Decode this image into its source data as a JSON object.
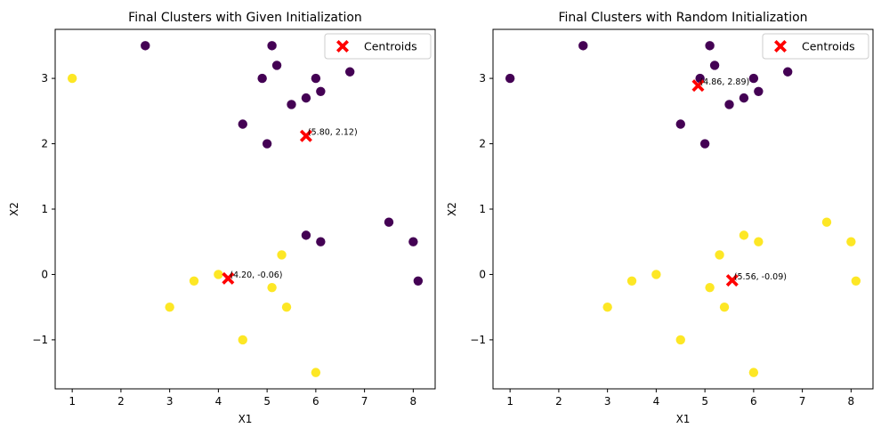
{
  "chart_data": [
    {
      "type": "scatter",
      "title": "Final Clusters with Given Initialization",
      "xlabel": "X1",
      "ylabel": "X2",
      "xlim": [
        0.65,
        8.45
      ],
      "ylim": [
        -1.75,
        3.75
      ],
      "xticks": [
        1,
        2,
        3,
        4,
        5,
        6,
        7,
        8
      ],
      "yticks": [
        -1,
        0,
        1,
        2,
        3
      ],
      "grid": false,
      "legend_position": "top-right",
      "legend": [
        {
          "label": "Centroids",
          "marker": "X",
          "color": "#ff0000"
        }
      ],
      "colors": {
        "cluster_0": "#440154",
        "cluster_1": "#fde725",
        "centroid": "#ff0000"
      },
      "series": [
        {
          "color": "#440154",
          "points": [
            [
              2.5,
              3.5
            ],
            [
              5.1,
              3.5
            ],
            [
              5.2,
              3.2
            ],
            [
              4.9,
              3.0
            ],
            [
              6.0,
              3.0
            ],
            [
              6.7,
              3.1
            ],
            [
              5.8,
              2.7
            ],
            [
              6.1,
              2.8
            ],
            [
              5.5,
              2.6
            ],
            [
              4.5,
              2.3
            ],
            [
              5.0,
              2.0
            ],
            [
              7.5,
              0.8
            ],
            [
              5.8,
              0.6
            ],
            [
              6.1,
              0.5
            ],
            [
              8.0,
              0.5
            ],
            [
              8.1,
              -0.1
            ]
          ]
        },
        {
          "color": "#fde725",
          "points": [
            [
              1.0,
              3.0
            ],
            [
              5.3,
              0.3
            ],
            [
              4.0,
              0.0
            ],
            [
              3.5,
              -0.1
            ],
            [
              5.1,
              -0.2
            ],
            [
              3.0,
              -0.5
            ],
            [
              5.4,
              -0.5
            ],
            [
              4.5,
              -1.0
            ],
            [
              6.0,
              -1.5
            ]
          ]
        }
      ],
      "centroids": [
        {
          "x": 5.8,
          "y": 2.12,
          "label": "(5.80, 2.12)"
        },
        {
          "x": 4.2,
          "y": -0.06,
          "label": "(4.20, -0.06)"
        }
      ]
    },
    {
      "type": "scatter",
      "title": "Final Clusters with Random Initialization",
      "xlabel": "X1",
      "ylabel": "X2",
      "xlim": [
        0.65,
        8.45
      ],
      "ylim": [
        -1.75,
        3.75
      ],
      "xticks": [
        1,
        2,
        3,
        4,
        5,
        6,
        7,
        8
      ],
      "yticks": [
        -1,
        0,
        1,
        2,
        3
      ],
      "grid": false,
      "legend_position": "top-right",
      "legend": [
        {
          "label": "Centroids",
          "marker": "X",
          "color": "#ff0000"
        }
      ],
      "colors": {
        "cluster_0": "#440154",
        "cluster_1": "#fde725",
        "centroid": "#ff0000"
      },
      "series": [
        {
          "color": "#440154",
          "points": [
            [
              1.0,
              3.0
            ],
            [
              2.5,
              3.5
            ],
            [
              5.1,
              3.5
            ],
            [
              5.2,
              3.2
            ],
            [
              4.9,
              3.0
            ],
            [
              6.0,
              3.0
            ],
            [
              6.7,
              3.1
            ],
            [
              5.8,
              2.7
            ],
            [
              6.1,
              2.8
            ],
            [
              5.5,
              2.6
            ],
            [
              4.5,
              2.3
            ],
            [
              5.0,
              2.0
            ]
          ]
        },
        {
          "color": "#fde725",
          "points": [
            [
              7.5,
              0.8
            ],
            [
              5.8,
              0.6
            ],
            [
              6.1,
              0.5
            ],
            [
              8.0,
              0.5
            ],
            [
              5.3,
              0.3
            ],
            [
              4.0,
              0.0
            ],
            [
              3.5,
              -0.1
            ],
            [
              8.1,
              -0.1
            ],
            [
              5.1,
              -0.2
            ],
            [
              3.0,
              -0.5
            ],
            [
              5.4,
              -0.5
            ],
            [
              4.5,
              -1.0
            ],
            [
              6.0,
              -1.5
            ]
          ]
        }
      ],
      "centroids": [
        {
          "x": 4.86,
          "y": 2.89,
          "label": "(4.86, 2.89)"
        },
        {
          "x": 5.56,
          "y": -0.09,
          "label": "(5.56, -0.09)"
        }
      ]
    }
  ]
}
